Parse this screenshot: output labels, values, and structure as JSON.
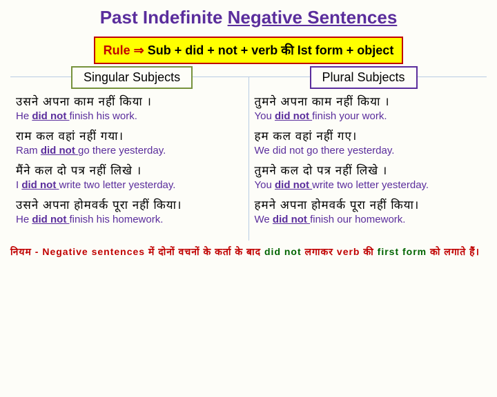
{
  "title_part1": "Past Indefinite ",
  "title_part2": "Negative Sentences",
  "rule_label": "Rule ⇒ ",
  "rule_text": "Sub + did + not + verb की Ist form + object",
  "singular_header": "Singular Subjects",
  "plural_header": "Plural Subjects",
  "singular": [
    {
      "hindi": "उसने अपना काम नहीं किया ।",
      "en_pre": "He ",
      "en_aux": "did not ",
      "en_post": "finish his work.",
      "styled": true
    },
    {
      "hindi": "राम कल वहां नहीं गया।",
      "en_pre": "Ram ",
      "en_aux": "did not ",
      "en_post": "go there yesterday.",
      "styled": true
    },
    {
      "hindi": "मैंने कल दो पत्र नहीं लिखे ।",
      "en_pre": "I ",
      "en_aux": "did not ",
      "en_post": "write two letter yesterday.",
      "styled": true
    },
    {
      "hindi": "उसने अपना होमवर्क पूरा नहीं किया।",
      "en_pre": "He ",
      "en_aux": "did not ",
      "en_post": "finish his homework.",
      "styled": true
    }
  ],
  "plural": [
    {
      "hindi": "तुमने अपना काम नहीं किया ।",
      "en_pre": "You ",
      "en_aux": "did not ",
      "en_post": "finish your work.",
      "styled": true
    },
    {
      "hindi": "हम कल वहां नहीं गए।",
      "en_pre": "We ",
      "en_aux": "did not ",
      "en_post": "go there yesterday.",
      "styled": false
    },
    {
      "hindi": "तुमने कल दो पत्र नहीं लिखे ।",
      "en_pre": "You ",
      "en_aux": "did not ",
      "en_post": "write two letter yesterday.",
      "styled": true
    },
    {
      "hindi": "हमने अपना होमवर्क पूरा नहीं किया।",
      "en_pre": "We ",
      "en_aux": "did not ",
      "en_post": "finish our homework.",
      "styled": true
    }
  ],
  "footer_pre": "नियम - Negative sentences में दोनों वचनों के कर्ता के बाद ",
  "footer_green1": "did not",
  "footer_mid": " लगाकर verb की ",
  "footer_green2": "first form",
  "footer_post": " को लगाते हैं।",
  "colors": {
    "title": "#5a2d9c",
    "rule_bg": "#ffff00",
    "rule_border": "#c00000",
    "singular_border": "#76923c",
    "plural_border": "#5a2d9c",
    "english_text": "#5a2d9c",
    "footer_red": "#c00000",
    "footer_green": "#006400",
    "divider": "#b8cce4",
    "background": "#fdfdf8"
  }
}
